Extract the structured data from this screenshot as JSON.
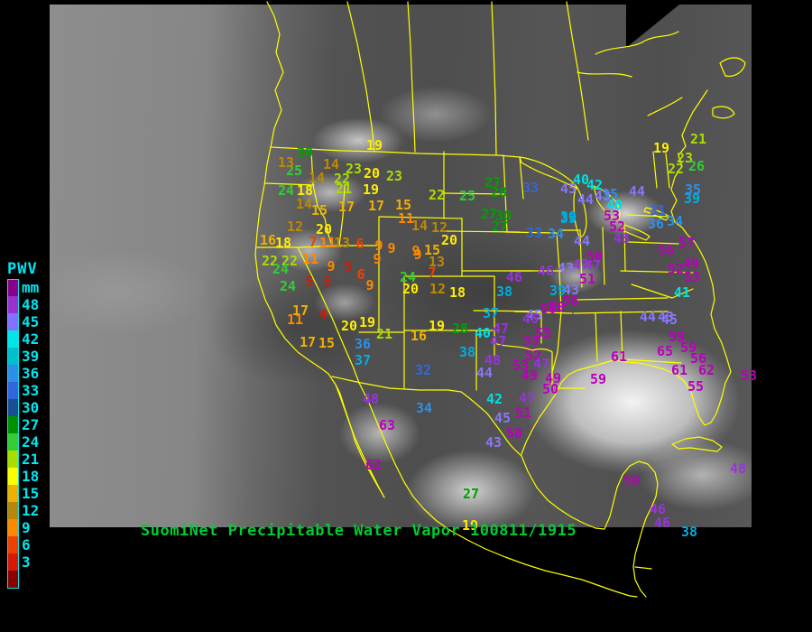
{
  "title": {
    "text": "SuomiNet Precipitable Water Vapor 100811/1915",
    "color": "#00cc33"
  },
  "legend": {
    "heading": "PWV",
    "unit": "mm",
    "label_color": "#00e5ee",
    "boxes": [
      {
        "color": "#8B008B",
        "label": "mm"
      },
      {
        "color": "#9932CC",
        "label": "48"
      },
      {
        "color": "#8470FF",
        "label": "45"
      },
      {
        "color": "#00E5E5",
        "label": "42"
      },
      {
        "color": "#00C0CC",
        "label": "39"
      },
      {
        "color": "#2E8FE8",
        "label": "36"
      },
      {
        "color": "#3366DD",
        "label": "33"
      },
      {
        "color": "#1B4F94",
        "label": "30"
      },
      {
        "color": "#009000",
        "label": "27"
      },
      {
        "color": "#33CC33",
        "label": "24"
      },
      {
        "color": "#AADD00",
        "label": "21"
      },
      {
        "color": "#FFFF00",
        "label": "18"
      },
      {
        "color": "#F0B000",
        "label": "15"
      },
      {
        "color": "#B8860B",
        "label": "12"
      },
      {
        "color": "#FF8800",
        "label": "9"
      },
      {
        "color": "#F04000",
        "label": "6"
      },
      {
        "color": "#D81800",
        "label": "3"
      },
      {
        "color": "#8B0000",
        "label": ""
      }
    ]
  },
  "value_colors": [
    {
      "upto": 5,
      "color": "#D81800"
    },
    {
      "upto": 8,
      "color": "#F04000"
    },
    {
      "upto": 11,
      "color": "#FF8800"
    },
    {
      "upto": 14,
      "color": "#C08800"
    },
    {
      "upto": 17,
      "color": "#F0B000"
    },
    {
      "upto": 20,
      "color": "#FFEE00"
    },
    {
      "upto": 23,
      "color": "#AADD00"
    },
    {
      "upto": 26,
      "color": "#33CC33"
    },
    {
      "upto": 30,
      "color": "#00A000"
    },
    {
      "upto": 33,
      "color": "#3366DD"
    },
    {
      "upto": 36,
      "color": "#2E8FE8"
    },
    {
      "upto": 39,
      "color": "#00AEE0"
    },
    {
      "upto": 42,
      "color": "#00E0E0"
    },
    {
      "upto": 45,
      "color": "#8877F8"
    },
    {
      "upto": 48,
      "color": "#9933DD"
    },
    {
      "upto": 99,
      "color": "#BB00BB"
    }
  ],
  "chart_data": {
    "type": "scatter",
    "title": "SuomiNet Precipitable Water Vapor 100811/1915",
    "units": "mm",
    "legend_position": "left",
    "stations": [
      [
        19,
        415,
        162
      ],
      [
        30,
        338,
        170
      ],
      [
        25,
        326,
        190
      ],
      [
        13,
        317,
        181
      ],
      [
        14,
        367,
        183
      ],
      [
        23,
        392,
        188
      ],
      [
        20,
        412,
        193
      ],
      [
        23,
        437,
        196
      ],
      [
        14,
        351,
        198
      ],
      [
        22,
        379,
        199
      ],
      [
        21,
        381,
        210
      ],
      [
        19,
        411,
        211
      ],
      [
        24,
        317,
        212
      ],
      [
        18,
        338,
        212
      ],
      [
        14,
        337,
        227
      ],
      [
        15,
        354,
        234
      ],
      [
        17,
        384,
        230
      ],
      [
        17,
        417,
        229
      ],
      [
        15,
        447,
        228
      ],
      [
        11,
        450,
        243
      ],
      [
        12,
        327,
        252
      ],
      [
        20,
        359,
        255
      ],
      [
        14,
        465,
        251
      ],
      [
        12,
        487,
        253
      ],
      [
        20,
        498,
        267
      ],
      [
        15,
        479,
        278
      ],
      [
        16,
        297,
        267
      ],
      [
        18,
        314,
        270
      ],
      [
        7,
        347,
        269
      ],
      [
        11,
        363,
        270
      ],
      [
        13,
        379,
        270
      ],
      [
        6,
        399,
        271
      ],
      [
        9,
        420,
        273
      ],
      [
        9,
        434,
        276
      ],
      [
        9,
        461,
        279
      ],
      [
        22,
        299,
        290
      ],
      [
        22,
        321,
        290
      ],
      [
        24,
        311,
        299
      ],
      [
        24,
        319,
        318
      ],
      [
        11,
        344,
        288
      ],
      [
        9,
        367,
        296
      ],
      [
        5,
        386,
        296
      ],
      [
        9,
        418,
        288
      ],
      [
        6,
        400,
        305
      ],
      [
        9,
        410,
        317
      ],
      [
        5,
        343,
        313
      ],
      [
        5,
        363,
        313
      ],
      [
        17,
        333,
        345
      ],
      [
        4,
        358,
        349
      ],
      [
        11,
        327,
        355
      ],
      [
        17,
        341,
        380
      ],
      [
        15,
        362,
        381
      ],
      [
        20,
        387,
        362
      ],
      [
        19,
        407,
        358
      ],
      [
        21,
        426,
        371
      ],
      [
        36,
        402,
        382
      ],
      [
        37,
        402,
        400
      ],
      [
        24,
        452,
        308
      ],
      [
        20,
        455,
        321
      ],
      [
        12,
        485,
        321
      ],
      [
        18,
        507,
        325
      ],
      [
        9,
        463,
        283
      ],
      [
        13,
        484,
        291
      ],
      [
        7,
        479,
        303
      ],
      [
        48,
        411,
        443
      ],
      [
        34,
        470,
        453
      ],
      [
        63,
        429,
        472
      ],
      [
        62,
        414,
        516
      ],
      [
        16,
        464,
        373
      ],
      [
        19,
        484,
        362
      ],
      [
        28,
        510,
        365
      ],
      [
        38,
        518,
        391
      ],
      [
        32,
        469,
        411
      ],
      [
        27,
        522,
        548
      ],
      [
        22,
        484,
        217
      ],
      [
        25,
        518,
        218
      ],
      [
        27,
        546,
        203
      ],
      [
        28,
        553,
        214
      ],
      [
        33,
        588,
        209
      ],
      [
        45,
        630,
        210
      ],
      [
        27,
        542,
        238
      ],
      [
        30,
        558,
        240
      ],
      [
        27,
        554,
        252
      ],
      [
        33,
        592,
        259
      ],
      [
        34,
        616,
        260
      ],
      [
        39,
        630,
        241
      ],
      [
        38,
        559,
        324
      ],
      [
        37,
        544,
        348
      ],
      [
        46,
        570,
        308
      ],
      [
        50,
        617,
        341
      ],
      [
        45,
        592,
        350
      ],
      [
        40,
        535,
        370
      ],
      [
        47,
        555,
        365
      ],
      [
        47,
        552,
        379
      ],
      [
        46,
        588,
        354
      ],
      [
        50,
        608,
        343
      ],
      [
        56,
        632,
        334
      ],
      [
        43,
        633,
        322
      ],
      [
        39,
        618,
        323
      ],
      [
        51,
        651,
        310
      ],
      [
        46,
        605,
        301
      ],
      [
        43,
        627,
        298
      ],
      [
        47,
        644,
        294
      ],
      [
        50,
        659,
        285
      ],
      [
        44,
        645,
        268
      ],
      [
        40,
        644,
        200
      ],
      [
        42,
        659,
        206
      ],
      [
        43,
        668,
        218
      ],
      [
        44,
        649,
        222
      ],
      [
        35,
        676,
        216
      ],
      [
        40,
        681,
        228
      ],
      [
        44,
        706,
        213
      ],
      [
        39,
        630,
        243
      ],
      [
        53,
        678,
        240
      ],
      [
        52,
        684,
        252
      ],
      [
        48,
        689,
        265
      ],
      [
        31,
        729,
        234
      ],
      [
        36,
        727,
        249
      ],
      [
        34,
        748,
        246
      ],
      [
        47,
        657,
        295
      ],
      [
        19,
        733,
        165
      ],
      [
        21,
        774,
        155
      ],
      [
        23,
        759,
        176
      ],
      [
        26,
        772,
        185
      ],
      [
        22,
        749,
        188
      ],
      [
        35,
        768,
        211
      ],
      [
        39,
        767,
        221
      ],
      [
        57,
        761,
        270
      ],
      [
        56,
        738,
        278
      ],
      [
        52,
        749,
        299
      ],
      [
        49,
        766,
        293
      ],
      [
        53,
        767,
        308
      ],
      [
        41,
        756,
        325
      ],
      [
        45,
        742,
        355
      ],
      [
        44,
        718,
        352
      ],
      [
        43,
        738,
        352
      ],
      [
        59,
        750,
        374
      ],
      [
        65,
        737,
        390
      ],
      [
        59,
        763,
        386
      ],
      [
        56,
        774,
        398
      ],
      [
        61,
        753,
        411
      ],
      [
        62,
        783,
        411
      ],
      [
        55,
        771,
        429
      ],
      [
        61,
        686,
        396
      ],
      [
        53,
        830,
        417
      ],
      [
        48,
        818,
        520
      ],
      [
        55,
        602,
        370
      ],
      [
        53,
        589,
        378
      ],
      [
        52,
        591,
        395
      ],
      [
        53,
        577,
        406
      ],
      [
        47,
        600,
        404
      ],
      [
        44,
        537,
        414
      ],
      [
        49,
        587,
        417
      ],
      [
        49,
        613,
        420
      ],
      [
        48,
        546,
        400
      ],
      [
        50,
        610,
        432
      ],
      [
        59,
        663,
        421
      ],
      [
        42,
        548,
        443
      ],
      [
        47,
        584,
        442
      ],
      [
        51,
        580,
        458
      ],
      [
        45,
        557,
        464
      ],
      [
        50,
        570,
        481
      ],
      [
        43,
        547,
        491
      ],
      [
        50,
        700,
        533
      ],
      [
        46,
        729,
        565
      ],
      [
        46,
        734,
        580
      ],
      [
        38,
        764,
        590
      ],
      [
        19,
        521,
        583
      ]
    ]
  }
}
